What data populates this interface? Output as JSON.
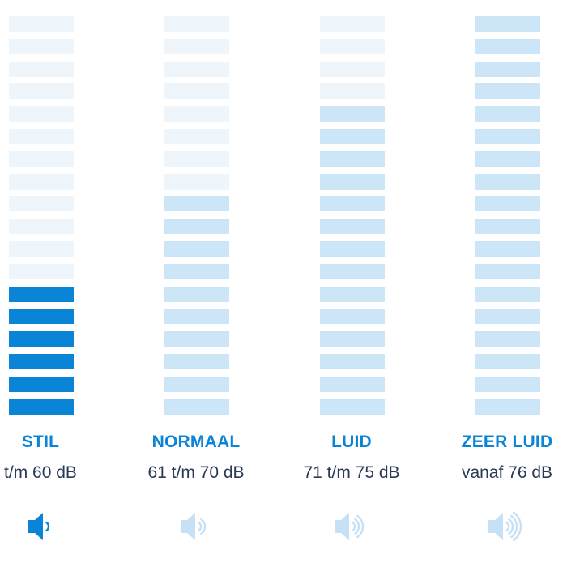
{
  "levels": [
    {
      "label": "STIL",
      "range": "t/m 60 dB",
      "active_segments": 6,
      "accent": "#0a84d6",
      "icon": "speaker-one-wave-icon",
      "waves": 1,
      "icon_color": "#0a84d6"
    },
    {
      "label": "NORMAAL",
      "range": "61 t/m 70 dB",
      "active_segments": 10,
      "accent": "#cde6f7",
      "icon": "speaker-two-waves-icon",
      "waves": 2,
      "icon_color": "#c6e1f5"
    },
    {
      "label": "LUID",
      "range": "71 t/m 75 dB",
      "active_segments": 14,
      "accent": "#cde6f7",
      "icon": "speaker-three-waves-icon",
      "waves": 3,
      "icon_color": "#c6e1f5"
    },
    {
      "label": "ZEER LUID",
      "range": "vanaf 76 dB",
      "active_segments": 18,
      "accent": "#cde6f7",
      "icon": "speaker-four-waves-icon",
      "waves": 4,
      "icon_color": "#c6e1f5"
    }
  ],
  "total_segments": 18
}
